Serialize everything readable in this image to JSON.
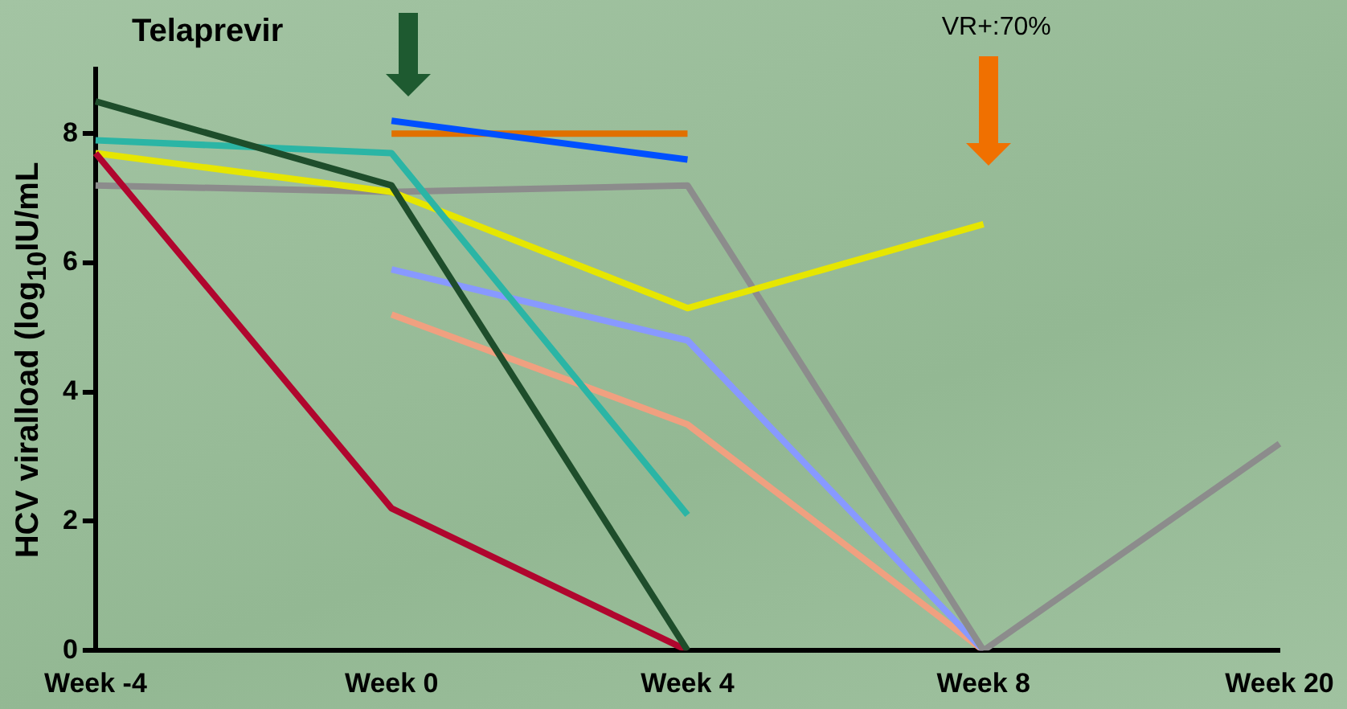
{
  "chart_data": {
    "type": "line",
    "ylabel": "HCV viralload (log$_{10}$IU/mL",
    "categories": [
      "Week -4",
      "Week 0",
      "Week 4",
      "Week 8",
      "Week 20"
    ],
    "series": [
      {
        "color": "#1e4d2b",
        "values": [
          8.5,
          7.2,
          0,
          null,
          null
        ]
      },
      {
        "color": "#b0062e",
        "values": [
          7.7,
          2.2,
          0,
          null,
          null
        ]
      },
      {
        "color": "#2bb5a5",
        "values": [
          7.9,
          7.7,
          2.1,
          null,
          null
        ]
      },
      {
        "color": "#e6e600",
        "values": [
          7.7,
          7.1,
          5.3,
          6.6,
          null
        ]
      },
      {
        "color": "#8c8c8c",
        "values": [
          7.2,
          7.1,
          7.2,
          0,
          3.2
        ]
      },
      {
        "color": "#0050ff",
        "values": [
          null,
          8.2,
          7.6,
          null,
          null
        ]
      },
      {
        "color": "#e07000",
        "values": [
          null,
          8.0,
          8.0,
          null,
          null
        ]
      },
      {
        "color": "#8899ff",
        "values": [
          null,
          5.9,
          4.8,
          0,
          null
        ]
      },
      {
        "color": "#f0a080",
        "values": [
          null,
          5.2,
          3.5,
          0,
          null
        ]
      }
    ],
    "ylim": [
      0,
      9
    ],
    "yticks": [
      0,
      2,
      4,
      6,
      8
    ],
    "grid": false,
    "legend": false,
    "marker": "none",
    "line_style": "solid",
    "annotations": [
      "Telaprevir",
      "VR+:70%"
    ]
  }
}
